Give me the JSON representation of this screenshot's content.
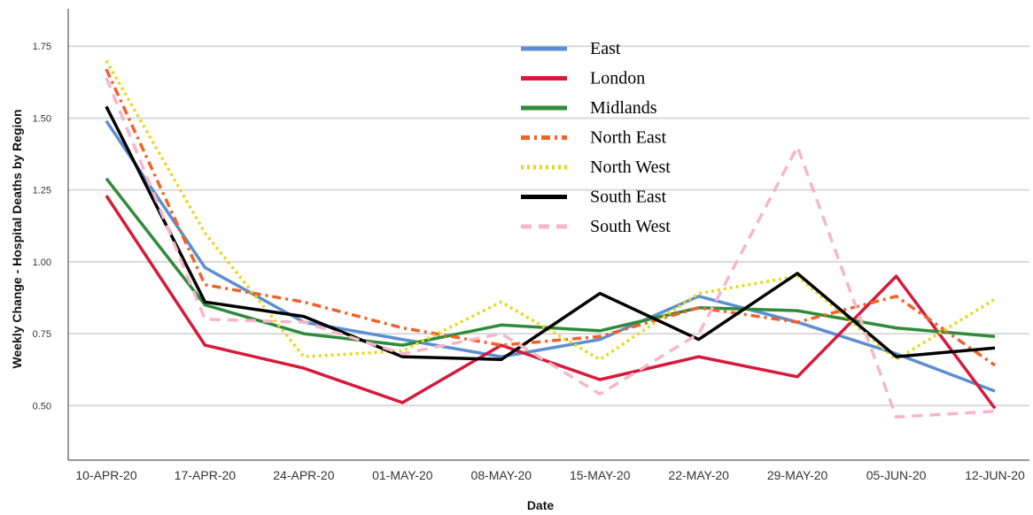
{
  "chart_data": {
    "type": "line",
    "xlabel": "Date",
    "ylabel": "Weekly Change - Hospital Deaths by Region",
    "categories": [
      "10-APR-20",
      "17-APR-20",
      "24-APR-20",
      "01-MAY-20",
      "08-MAY-20",
      "15-MAY-20",
      "22-MAY-20",
      "29-MAY-20",
      "05-JUN-20",
      "12-JUN-20"
    ],
    "yticks": [
      "0.50",
      "0.75",
      "1.00",
      "1.25",
      "1.50",
      "1.75"
    ],
    "ylim": [
      0.31,
      1.88
    ],
    "grid": true,
    "legend_position": "top-center",
    "series": [
      {
        "name": "East",
        "color": "#5b8fd1",
        "dash": "solid",
        "values": [
          1.49,
          0.98,
          0.79,
          0.73,
          0.67,
          0.73,
          0.88,
          0.79,
          0.68,
          0.55
        ]
      },
      {
        "name": "London",
        "color": "#d7193a",
        "dash": "solid",
        "values": [
          1.23,
          0.71,
          0.63,
          0.51,
          0.71,
          0.59,
          0.67,
          0.6,
          0.95,
          0.49
        ]
      },
      {
        "name": "Midlands",
        "color": "#2e8b3a",
        "dash": "solid",
        "values": [
          1.29,
          0.85,
          0.75,
          0.71,
          0.78,
          0.76,
          0.84,
          0.83,
          0.77,
          0.74
        ]
      },
      {
        "name": "North East",
        "color": "#f0622a",
        "dash": "dashdot",
        "values": [
          1.67,
          0.92,
          0.86,
          0.77,
          0.71,
          0.74,
          0.84,
          0.79,
          0.88,
          0.64
        ]
      },
      {
        "name": "North West",
        "color": "#e8d81a",
        "dash": "dotted",
        "values": [
          1.7,
          1.1,
          0.67,
          0.69,
          0.86,
          0.66,
          0.89,
          0.95,
          0.66,
          0.87
        ]
      },
      {
        "name": "South East",
        "color": "#000000",
        "dash": "solid",
        "values": [
          1.54,
          0.86,
          0.81,
          0.67,
          0.66,
          0.89,
          0.73,
          0.96,
          0.67,
          0.7
        ]
      },
      {
        "name": "South West",
        "color": "#f7b6c8",
        "dash": "dashed",
        "values": [
          1.64,
          0.8,
          0.79,
          0.68,
          0.75,
          0.54,
          0.75,
          1.4,
          0.46,
          0.48
        ]
      }
    ]
  }
}
